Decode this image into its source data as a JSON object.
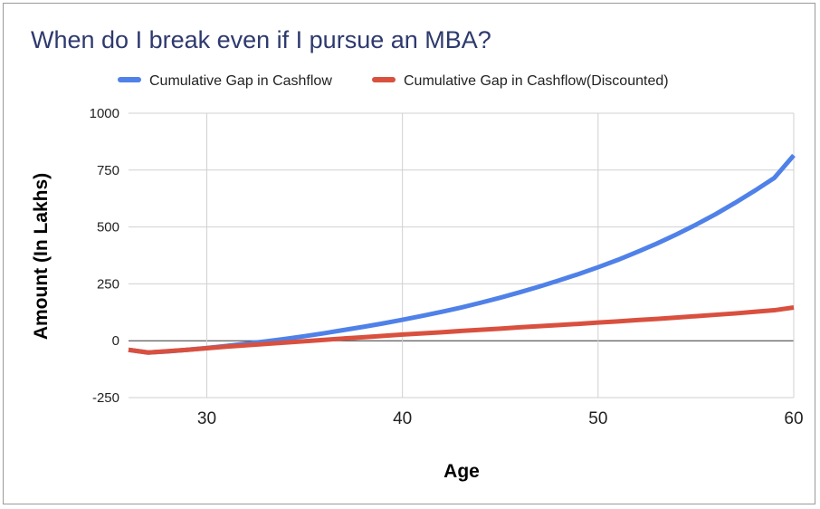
{
  "chart_data": {
    "type": "line",
    "title": "When do I break even if I pursue an MBA?",
    "xlabel": "Age",
    "ylabel": "Amount (In Lakhs)",
    "xlim": [
      26,
      60
    ],
    "ylim": [
      -250,
      1000
    ],
    "x_ticks": [
      "30",
      "40",
      "50",
      "60"
    ],
    "y_ticks": [
      "1000",
      "750",
      "500",
      "250",
      "0",
      "-250"
    ],
    "grid": true,
    "legend_position": "top",
    "x": [
      26,
      27,
      28,
      29,
      30,
      31,
      32,
      33,
      34,
      35,
      36,
      37,
      38,
      39,
      40,
      41,
      42,
      43,
      44,
      45,
      46,
      47,
      48,
      49,
      50,
      51,
      52,
      53,
      54,
      55,
      56,
      57,
      58,
      59,
      60
    ],
    "series": [
      {
        "name": "Cumulative Gap in Cashflow",
        "color": "#4f81e8",
        "values": [
          -40,
          -52,
          -47,
          -40,
          -32,
          -23,
          -13,
          -3,
          8,
          20,
          33,
          47,
          61,
          76,
          92,
          109,
          127,
          146,
          167,
          189,
          213,
          238,
          265,
          293,
          323,
          355,
          390,
          427,
          467,
          510,
          556,
          606,
          659,
          715,
          815
        ]
      },
      {
        "name": "Cumulative Gap in Cashflow(Discounted)",
        "color": "#d9503f",
        "values": [
          -40,
          -52,
          -46,
          -40,
          -33,
          -26,
          -20,
          -14,
          -8,
          -2,
          4,
          10,
          15,
          21,
          27,
          32,
          37,
          43,
          48,
          53,
          59,
          64,
          69,
          74,
          80,
          85,
          91,
          96,
          102,
          108,
          114,
          120,
          127,
          134,
          146
        ]
      }
    ]
  }
}
